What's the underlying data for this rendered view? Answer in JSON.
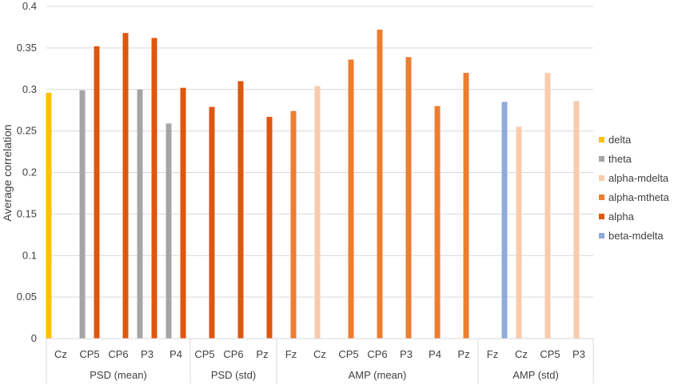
{
  "chart_data": {
    "type": "bar",
    "ylabel": "Average correlation",
    "ylim": [
      0,
      0.4
    ],
    "yticks": [
      "0",
      "0.05",
      "0.1",
      "0.15",
      "0.2",
      "0.25",
      "0.3",
      "0.35",
      "0.4"
    ],
    "grid": true,
    "legend_position": "right",
    "series": [
      {
        "name": "delta",
        "color": "#FFC000"
      },
      {
        "name": "theta",
        "color": "#A5A5A5"
      },
      {
        "name": "alpha-mdelta",
        "color": "#F8CBAD"
      },
      {
        "name": "alpha-mtheta",
        "color": "#ED7D31"
      },
      {
        "name": "alpha",
        "color": "#E0560F"
      },
      {
        "name": "beta-mdelta",
        "color": "#8FAADC"
      }
    ],
    "groups": [
      {
        "label": "PSD (mean)",
        "categories": [
          "Cz",
          "CP5",
          "CP6",
          "P3",
          "P4"
        ]
      },
      {
        "label": "PSD (std)",
        "categories": [
          "CP5",
          "CP6",
          "Pz"
        ]
      },
      {
        "label": "AMP (mean)",
        "categories": [
          "Fz",
          "Cz",
          "CP5",
          "CP6",
          "P3",
          "P4",
          "Pz"
        ]
      },
      {
        "label": "AMP (std)",
        "categories": [
          "Fz",
          "Cz",
          "CP5",
          "P3"
        ]
      }
    ],
    "bars": [
      {
        "cat": 0,
        "series": 0,
        "value": 0.296
      },
      {
        "cat": 1,
        "series": 1,
        "value": 0.299
      },
      {
        "cat": 1,
        "series": 4,
        "value": 0.352
      },
      {
        "cat": 2,
        "series": 4,
        "value": 0.368
      },
      {
        "cat": 3,
        "series": 1,
        "value": 0.3
      },
      {
        "cat": 3,
        "series": 4,
        "value": 0.362
      },
      {
        "cat": 4,
        "series": 1,
        "value": 0.259
      },
      {
        "cat": 4,
        "series": 4,
        "value": 0.302
      },
      {
        "cat": 5,
        "series": 4,
        "value": 0.279
      },
      {
        "cat": 6,
        "series": 4,
        "value": 0.31
      },
      {
        "cat": 7,
        "series": 4,
        "value": 0.267
      },
      {
        "cat": 8,
        "series": 3,
        "value": 0.274
      },
      {
        "cat": 9,
        "series": 2,
        "value": 0.304
      },
      {
        "cat": 10,
        "series": 3,
        "value": 0.336
      },
      {
        "cat": 11,
        "series": 3,
        "value": 0.372
      },
      {
        "cat": 12,
        "series": 3,
        "value": 0.339
      },
      {
        "cat": 13,
        "series": 3,
        "value": 0.28
      },
      {
        "cat": 14,
        "series": 3,
        "value": 0.32
      },
      {
        "cat": 15,
        "series": 5,
        "value": 0.285
      },
      {
        "cat": 16,
        "series": 2,
        "value": 0.255
      },
      {
        "cat": 17,
        "series": 2,
        "value": 0.32
      },
      {
        "cat": 18,
        "series": 2,
        "value": 0.286
      }
    ]
  }
}
